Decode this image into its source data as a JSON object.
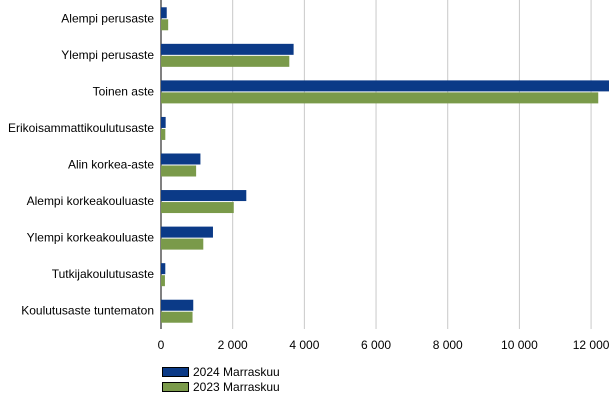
{
  "chart_data": {
    "type": "bar",
    "orientation": "horizontal",
    "categories": [
      "Alempi perusaste",
      "Ylempi perusaste",
      "Toinen aste",
      "Erikoisammattikoulutusaste",
      "Alin korkea-aste",
      "Alempi korkeakouluaste",
      "Ylempi korkeakouluaste",
      "Tutkijakoulutusaste",
      "Koulutusaste tuntematon"
    ],
    "series": [
      {
        "name": "2024 Marraskuu",
        "color": "#0b3a87",
        "values": [
          160,
          3700,
          12500,
          130,
          1100,
          2380,
          1450,
          120,
          900
        ]
      },
      {
        "name": "2023 Marraskuu",
        "color": "#7a9a4a",
        "values": [
          200,
          3580,
          12200,
          120,
          980,
          2030,
          1180,
          110,
          880
        ]
      }
    ],
    "xlim": [
      0,
      12500
    ],
    "xticks": [
      0,
      2000,
      4000,
      6000,
      8000,
      10000,
      12000
    ],
    "xtick_labels": [
      "0",
      "2 000",
      "4 000",
      "6 000",
      "8 000",
      "10 000",
      "12 000"
    ],
    "grid": true,
    "legend_position": "bottom-left"
  }
}
